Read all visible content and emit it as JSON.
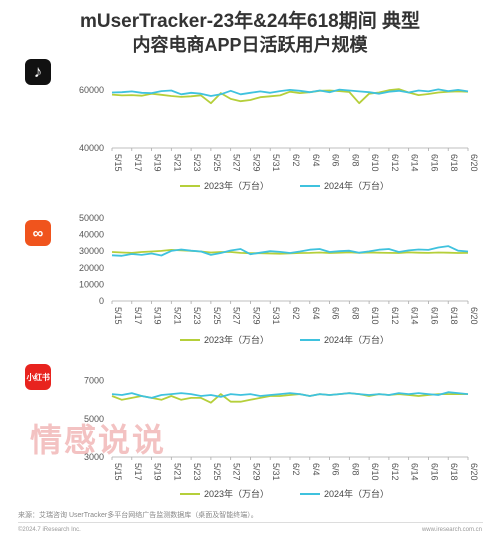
{
  "header": {
    "title_line1": "mUserTracker-23年&24年618期间 典型",
    "title_line2": "内容电商APP日活跃用户规模"
  },
  "icons": {
    "douyin": {
      "name": "douyin-icon",
      "glyph": "♪"
    },
    "taobao": {
      "name": "taobao-icon",
      "glyph": "∞"
    },
    "xiaohongshu": {
      "name": "xiaohongshu-icon",
      "glyph": "小红书"
    }
  },
  "watermark": "情感说说",
  "footer": {
    "source": "来源：艾瑞咨询 UserTracker多平台网络广告监测数据库（桌面及智能终端）。",
    "copyright": "©2024.7 iResearch Inc.",
    "site": "www.iresearch.com.cn"
  },
  "colors": {
    "y2023": "#b5cf3a",
    "y2024": "#3fc2de"
  },
  "chart_data": [
    {
      "type": "line",
      "app": "douyin",
      "x": [
        "5/15",
        "5/16",
        "5/17",
        "5/18",
        "5/19",
        "5/20",
        "5/21",
        "5/22",
        "5/23",
        "5/24",
        "5/25",
        "5/26",
        "5/27",
        "5/28",
        "5/29",
        "5/30",
        "5/31",
        "6/1",
        "6/2",
        "6/3",
        "6/4",
        "6/5",
        "6/6",
        "6/7",
        "6/8",
        "6/9",
        "6/10",
        "6/11",
        "6/12",
        "6/13",
        "6/14",
        "6/15",
        "6/16",
        "6/17",
        "6/18",
        "6/19",
        "6/20"
      ],
      "x_tick_labels": [
        "5/15",
        "5/17",
        "5/19",
        "5/21",
        "5/23",
        "5/25",
        "5/27",
        "5/29",
        "5/31",
        "6/2",
        "6/4",
        "6/6",
        "6/8",
        "6/10",
        "6/12",
        "6/14",
        "6/16",
        "6/18",
        "6/20"
      ],
      "yticks": [
        40000,
        60000
      ],
      "ylim": [
        40000,
        67000
      ],
      "series": [
        {
          "name": "2023年（万台）",
          "values": [
            58500,
            58200,
            58300,
            58100,
            58800,
            58400,
            58000,
            57700,
            57900,
            58200,
            55500,
            59000,
            57000,
            56200,
            56600,
            57600,
            57900,
            58200,
            59500,
            59000,
            59300,
            59800,
            59900,
            59700,
            59400,
            55500,
            58800,
            59200,
            60000,
            60400,
            59200,
            58300,
            58700,
            59200,
            59500,
            59600,
            59500
          ]
        },
        {
          "name": "2024年（万台）",
          "values": [
            59200,
            59300,
            59600,
            59100,
            59000,
            59700,
            59900,
            58600,
            59100,
            58800,
            58000,
            58600,
            59800,
            58600,
            59100,
            59600,
            59100,
            59700,
            60100,
            59800,
            59300,
            59900,
            59300,
            60200,
            59900,
            59600,
            59300,
            58800,
            59500,
            59800,
            59200,
            59900,
            59600,
            60300,
            59700,
            60100,
            59600
          ]
        }
      ],
      "legend": "bottom"
    },
    {
      "type": "line",
      "app": "taobao",
      "x": [
        "5/15",
        "5/16",
        "5/17",
        "5/18",
        "5/19",
        "5/20",
        "5/21",
        "5/22",
        "5/23",
        "5/24",
        "5/25",
        "5/26",
        "5/27",
        "5/28",
        "5/29",
        "5/30",
        "5/31",
        "6/1",
        "6/2",
        "6/3",
        "6/4",
        "6/5",
        "6/6",
        "6/7",
        "6/8",
        "6/9",
        "6/10",
        "6/11",
        "6/12",
        "6/13",
        "6/14",
        "6/15",
        "6/16",
        "6/17",
        "6/18",
        "6/19",
        "6/20"
      ],
      "x_tick_labels": [
        "5/15",
        "5/17",
        "5/19",
        "5/21",
        "5/23",
        "5/25",
        "5/27",
        "5/29",
        "5/31",
        "6/2",
        "6/4",
        "6/6",
        "6/8",
        "6/10",
        "6/12",
        "6/14",
        "6/16",
        "6/18",
        "6/20"
      ],
      "yticks": [
        0,
        10000,
        20000,
        30000,
        40000,
        50000
      ],
      "ylim": [
        0,
        50000
      ],
      "series": [
        {
          "name": "2023年（万台）",
          "values": [
            29500,
            29200,
            29000,
            29500,
            29800,
            30200,
            30800,
            30500,
            30200,
            29800,
            29200,
            29500,
            29500,
            29000,
            28800,
            28800,
            28600,
            28500,
            28700,
            28900,
            29000,
            29200,
            28900,
            29100,
            29300,
            29000,
            29200,
            29100,
            29000,
            28900,
            29300,
            29100,
            29000,
            29200,
            29100,
            28900,
            29000
          ]
        },
        {
          "name": "2024年（万台）",
          "values": [
            27500,
            27200,
            28300,
            27800,
            28600,
            27400,
            30200,
            31000,
            30300,
            29800,
            27800,
            28900,
            30400,
            31300,
            28200,
            29100,
            30000,
            29600,
            28900,
            29800,
            30900,
            31300,
            29500,
            30000,
            30300,
            29100,
            29900,
            30900,
            31300,
            29500,
            30500,
            31000,
            30800,
            32200,
            33100,
            30300,
            29800
          ]
        }
      ],
      "legend": "bottom"
    },
    {
      "type": "line",
      "app": "xiaohongshu",
      "x": [
        "5/15",
        "5/16",
        "5/17",
        "5/18",
        "5/19",
        "5/20",
        "5/21",
        "5/22",
        "5/23",
        "5/24",
        "5/25",
        "5/26",
        "5/27",
        "5/28",
        "5/29",
        "5/30",
        "5/31",
        "6/1",
        "6/2",
        "6/3",
        "6/4",
        "6/5",
        "6/6",
        "6/7",
        "6/8",
        "6/9",
        "6/10",
        "6/11",
        "6/12",
        "6/13",
        "6/14",
        "6/15",
        "6/16",
        "6/17",
        "6/18",
        "6/19",
        "6/20"
      ],
      "x_tick_labels": [
        "5/15",
        "5/17",
        "5/19",
        "5/21",
        "5/23",
        "5/25",
        "5/27",
        "5/29",
        "5/31",
        "6/2",
        "6/4",
        "6/6",
        "6/8",
        "6/10",
        "6/12",
        "6/14",
        "6/16",
        "6/18",
        "6/20"
      ],
      "yticks": [
        3000,
        5000,
        7000
      ],
      "ylim": [
        3000,
        7300
      ],
      "series": [
        {
          "name": "2023年（万台）",
          "values": [
            6200,
            6000,
            6100,
            6200,
            6100,
            6000,
            6200,
            6000,
            6100,
            6100,
            5850,
            6300,
            5900,
            5900,
            6000,
            6100,
            6200,
            6200,
            6250,
            6300,
            6200,
            6300,
            6250,
            6300,
            6350,
            6300,
            6200,
            6300,
            6250,
            6300,
            6250,
            6200,
            6250,
            6300,
            6300,
            6300,
            6300
          ]
        },
        {
          "name": "2024年（万台）",
          "values": [
            6300,
            6250,
            6350,
            6200,
            6100,
            6250,
            6300,
            6350,
            6300,
            6200,
            6250,
            6150,
            6300,
            6250,
            6300,
            6200,
            6250,
            6300,
            6350,
            6300,
            6200,
            6300,
            6250,
            6300,
            6350,
            6300,
            6250,
            6300,
            6250,
            6350,
            6300,
            6350,
            6300,
            6250,
            6400,
            6350,
            6300
          ]
        }
      ],
      "legend": "bottom"
    }
  ]
}
